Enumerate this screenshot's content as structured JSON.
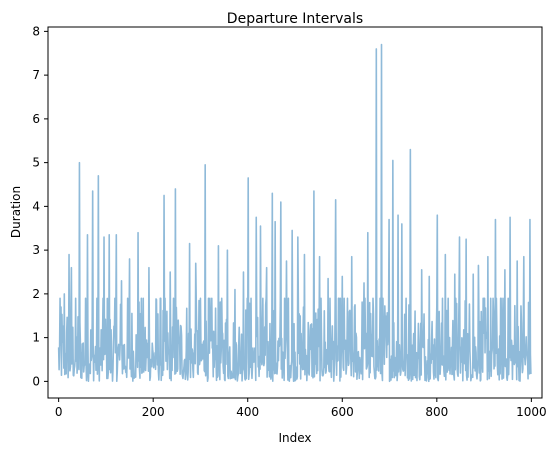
{
  "chart_data": {
    "type": "line",
    "title": "Departure Intervals",
    "xlabel": "Index",
    "ylabel": "Duration",
    "xlim": [
      -22.5,
      1022.5
    ],
    "ylim": [
      -0.38,
      8.1
    ],
    "xticks": [
      0,
      200,
      400,
      600,
      800,
      1000
    ],
    "yticks": [
      0,
      1,
      2,
      3,
      4,
      5,
      6,
      7,
      8
    ],
    "grid": false,
    "legend": "none",
    "series": [
      {
        "color": "#8fbad9",
        "x_start": 0,
        "x_end": 999,
        "n_points": 1000,
        "peaks": [
          {
            "x": 5,
            "y": 1.7
          },
          {
            "x": 12,
            "y": 2.0
          },
          {
            "x": 22,
            "y": 2.9
          },
          {
            "x": 27,
            "y": 2.6
          },
          {
            "x": 44,
            "y": 5.0
          },
          {
            "x": 61,
            "y": 3.35
          },
          {
            "x": 72,
            "y": 4.35
          },
          {
            "x": 84,
            "y": 4.7
          },
          {
            "x": 96,
            "y": 3.3
          },
          {
            "x": 107,
            "y": 3.35
          },
          {
            "x": 122,
            "y": 3.35
          },
          {
            "x": 133,
            "y": 2.3
          },
          {
            "x": 150,
            "y": 2.8
          },
          {
            "x": 168,
            "y": 3.4
          },
          {
            "x": 191,
            "y": 2.6
          },
          {
            "x": 223,
            "y": 4.25
          },
          {
            "x": 236,
            "y": 2.5
          },
          {
            "x": 247,
            "y": 4.4
          },
          {
            "x": 277,
            "y": 3.15
          },
          {
            "x": 290,
            "y": 2.7
          },
          {
            "x": 310,
            "y": 4.95
          },
          {
            "x": 338,
            "y": 3.1
          },
          {
            "x": 357,
            "y": 3.0
          },
          {
            "x": 373,
            "y": 2.1
          },
          {
            "x": 391,
            "y": 2.5
          },
          {
            "x": 401,
            "y": 4.65
          },
          {
            "x": 418,
            "y": 3.75
          },
          {
            "x": 427,
            "y": 3.55
          },
          {
            "x": 440,
            "y": 2.6
          },
          {
            "x": 452,
            "y": 4.3
          },
          {
            "x": 458,
            "y": 3.65
          },
          {
            "x": 470,
            "y": 4.1
          },
          {
            "x": 482,
            "y": 2.75
          },
          {
            "x": 494,
            "y": 3.45
          },
          {
            "x": 506,
            "y": 3.3
          },
          {
            "x": 520,
            "y": 2.9
          },
          {
            "x": 540,
            "y": 4.35
          },
          {
            "x": 552,
            "y": 2.85
          },
          {
            "x": 570,
            "y": 2.35
          },
          {
            "x": 586,
            "y": 4.15
          },
          {
            "x": 600,
            "y": 2.4
          },
          {
            "x": 620,
            "y": 2.85
          },
          {
            "x": 646,
            "y": 2.25
          },
          {
            "x": 654,
            "y": 3.4
          },
          {
            "x": 672,
            "y": 7.6
          },
          {
            "x": 683,
            "y": 7.7
          },
          {
            "x": 699,
            "y": 3.7
          },
          {
            "x": 707,
            "y": 5.05
          },
          {
            "x": 718,
            "y": 3.8
          },
          {
            "x": 726,
            "y": 3.6
          },
          {
            "x": 744,
            "y": 5.3
          },
          {
            "x": 768,
            "y": 2.55
          },
          {
            "x": 784,
            "y": 2.4
          },
          {
            "x": 801,
            "y": 3.8
          },
          {
            "x": 818,
            "y": 2.9
          },
          {
            "x": 838,
            "y": 2.45
          },
          {
            "x": 848,
            "y": 3.3
          },
          {
            "x": 862,
            "y": 3.25
          },
          {
            "x": 877,
            "y": 2.45
          },
          {
            "x": 888,
            "y": 2.65
          },
          {
            "x": 908,
            "y": 2.85
          },
          {
            "x": 924,
            "y": 3.7
          },
          {
            "x": 944,
            "y": 2.55
          },
          {
            "x": 955,
            "y": 3.75
          },
          {
            "x": 970,
            "y": 2.75
          },
          {
            "x": 984,
            "y": 2.85
          },
          {
            "x": 997,
            "y": 3.7
          }
        ]
      }
    ]
  }
}
